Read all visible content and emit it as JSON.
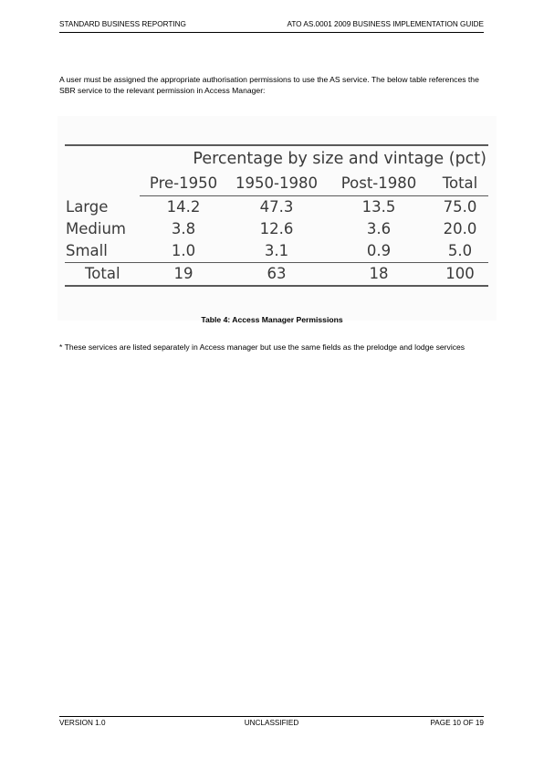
{
  "header": {
    "left": "STANDARD BUSINESS REPORTING",
    "right": "ATO AS.0001 2009 BUSINESS IMPLEMENTATION GUIDE"
  },
  "intro": "A user must be assigned the appropriate authorisation permissions to use the AS service. The below table references the SBR service to the relevant permission in Access Manager:",
  "table": {
    "title": "Percentage by size and vintage (pct)",
    "columns": [
      "Pre-1950",
      "1950-1980",
      "Post-1980",
      "Total"
    ],
    "rows": [
      {
        "label": "Large",
        "values": [
          "14.2",
          "47.3",
          "13.5",
          "75.0"
        ]
      },
      {
        "label": "Medium",
        "values": [
          "3.8",
          "12.6",
          "3.6",
          "20.0"
        ]
      },
      {
        "label": "Small",
        "values": [
          "1.0",
          "3.1",
          "0.9",
          "5.0"
        ]
      }
    ],
    "total": {
      "label": "Total",
      "values": [
        "19",
        "63",
        "18",
        "100"
      ]
    }
  },
  "caption": "Table 4: Access Manager Permissions",
  "note": "* These services are listed separately in Access manager but use the same fields as the prelodge and lodge services",
  "footer": {
    "left": "VERSION 1.0",
    "center": "UNCLASSIFIED",
    "right": "PAGE 10 OF 19"
  }
}
